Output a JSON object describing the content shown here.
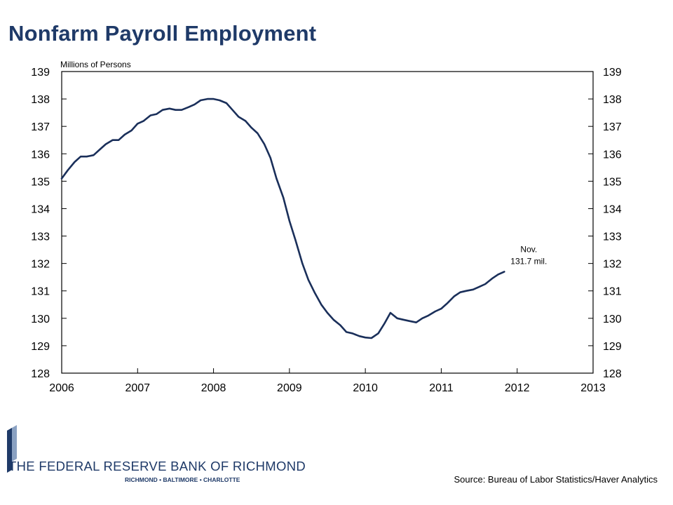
{
  "title": "Nonfarm Payroll Employment",
  "source": "Source: Bureau of Labor Statistics/Haver Analytics",
  "logo": {
    "name": "THE FEDERAL RESERVE BANK OF RICHMOND",
    "cities": "RICHMOND • BALTIMORE • CHARLOTTE"
  },
  "colors": {
    "title": "#1f3a68",
    "series": "#1a2f5a",
    "logo": "#1f3a68"
  },
  "chart_data": {
    "type": "line",
    "title": "Nonfarm Payroll Employment",
    "ylabel": "Millions of Persons",
    "xlabel": "",
    "xlim": [
      2006,
      2013
    ],
    "ylim": [
      128,
      139
    ],
    "x_ticks": [
      "2006",
      "2007",
      "2008",
      "2009",
      "2010",
      "2011",
      "2012",
      "2013"
    ],
    "y_ticks": [
      "128",
      "129",
      "130",
      "131",
      "132",
      "133",
      "134",
      "135",
      "136",
      "137",
      "138",
      "139"
    ],
    "grid": false,
    "series": [
      {
        "x": [
          2006.0,
          2006.08,
          2006.17,
          2006.25,
          2006.33,
          2006.42,
          2006.5,
          2006.58,
          2006.67,
          2006.75,
          2006.83,
          2006.92,
          2007.0,
          2007.08,
          2007.17,
          2007.25,
          2007.33,
          2007.42,
          2007.5,
          2007.58,
          2007.67,
          2007.75,
          2007.83,
          2007.92,
          2008.0,
          2008.08,
          2008.17,
          2008.25,
          2008.33,
          2008.42,
          2008.5,
          2008.58,
          2008.67,
          2008.75,
          2008.83,
          2008.92,
          2009.0,
          2009.08,
          2009.17,
          2009.25,
          2009.33,
          2009.42,
          2009.5,
          2009.58,
          2009.67,
          2009.75,
          2009.83,
          2009.92,
          2010.0,
          2010.08,
          2010.17,
          2010.25,
          2010.33,
          2010.42,
          2010.5,
          2010.58,
          2010.67,
          2010.75,
          2010.83,
          2010.92,
          2011.0,
          2011.08,
          2011.17,
          2011.25,
          2011.33,
          2011.42,
          2011.5,
          2011.58,
          2011.67,
          2011.75,
          2011.83
        ],
        "values": [
          135.1,
          135.4,
          135.7,
          135.9,
          135.9,
          135.95,
          136.15,
          136.35,
          136.5,
          136.5,
          136.7,
          136.85,
          137.1,
          137.2,
          137.4,
          137.45,
          137.6,
          137.65,
          137.6,
          137.6,
          137.7,
          137.8,
          137.95,
          138.0,
          138.0,
          137.95,
          137.85,
          137.6,
          137.35,
          137.2,
          136.95,
          136.75,
          136.35,
          135.85,
          135.1,
          134.4,
          133.55,
          132.85,
          132.0,
          131.4,
          130.95,
          130.5,
          130.2,
          129.95,
          129.75,
          129.5,
          129.45,
          129.35,
          129.3,
          129.28,
          129.45,
          129.8,
          130.2,
          130.0,
          129.95,
          129.9,
          129.85,
          130.0,
          130.1,
          130.25,
          130.35,
          130.55,
          130.8,
          130.95,
          131.0,
          131.05,
          131.15,
          131.25,
          131.45,
          131.6,
          131.7
        ]
      }
    ],
    "annotation": {
      "line1": "Nov.",
      "line2": "131.7 mil.",
      "x": 2011.83,
      "y": 131.7
    }
  }
}
